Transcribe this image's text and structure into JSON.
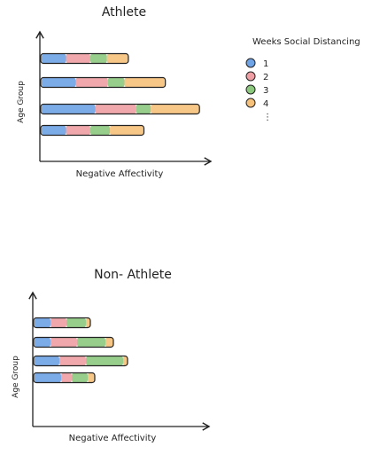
{
  "legend": {
    "title": "Weeks Social Distancing",
    "placement": "top-right",
    "items": [
      {
        "label": "1",
        "color": "#6ea3e6"
      },
      {
        "label": "2",
        "color": "#ef9ea3"
      },
      {
        "label": "3",
        "color": "#8cc97f"
      },
      {
        "label": "4",
        "color": "#f6c17a"
      },
      {
        "label": "⋮",
        "color": null
      }
    ]
  },
  "chart_data": [
    {
      "type": "bar",
      "orientation": "horizontal",
      "stacked": true,
      "title": "Athlete",
      "xlabel": "Negative Affectivity",
      "ylabel": "Age Group",
      "categories": [
        "",
        "",
        "",
        ""
      ],
      "grid": false,
      "series": [
        {
          "name": "1",
          "color": "#6ea3e6",
          "values": [
            25,
            35,
            55,
            25
          ]
        },
        {
          "name": "2",
          "color": "#ef9ea3",
          "values": [
            25,
            33,
            42,
            25
          ]
        },
        {
          "name": "3",
          "color": "#8cc97f",
          "values": [
            17,
            17,
            15,
            20
          ]
        },
        {
          "name": "4",
          "color": "#f6c17a",
          "values": [
            22,
            42,
            50,
            35
          ]
        }
      ]
    },
    {
      "type": "bar",
      "orientation": "horizontal",
      "stacked": true,
      "title": "Non- Athlete",
      "xlabel": "Negative Affectivity",
      "ylabel": "Age Group",
      "categories": [
        "",
        "",
        "",
        ""
      ],
      "grid": false,
      "series": [
        {
          "name": "1",
          "color": "#6ea3e6",
          "values": [
            18,
            18,
            28,
            30
          ]
        },
        {
          "name": "2",
          "color": "#ef9ea3",
          "values": [
            18,
            30,
            30,
            12
          ]
        },
        {
          "name": "3",
          "color": "#8cc97f",
          "values": [
            22,
            32,
            42,
            18
          ]
        },
        {
          "name": "4",
          "color": "#f6c17a",
          "values": [
            5,
            9,
            5,
            8
          ]
        }
      ]
    }
  ]
}
